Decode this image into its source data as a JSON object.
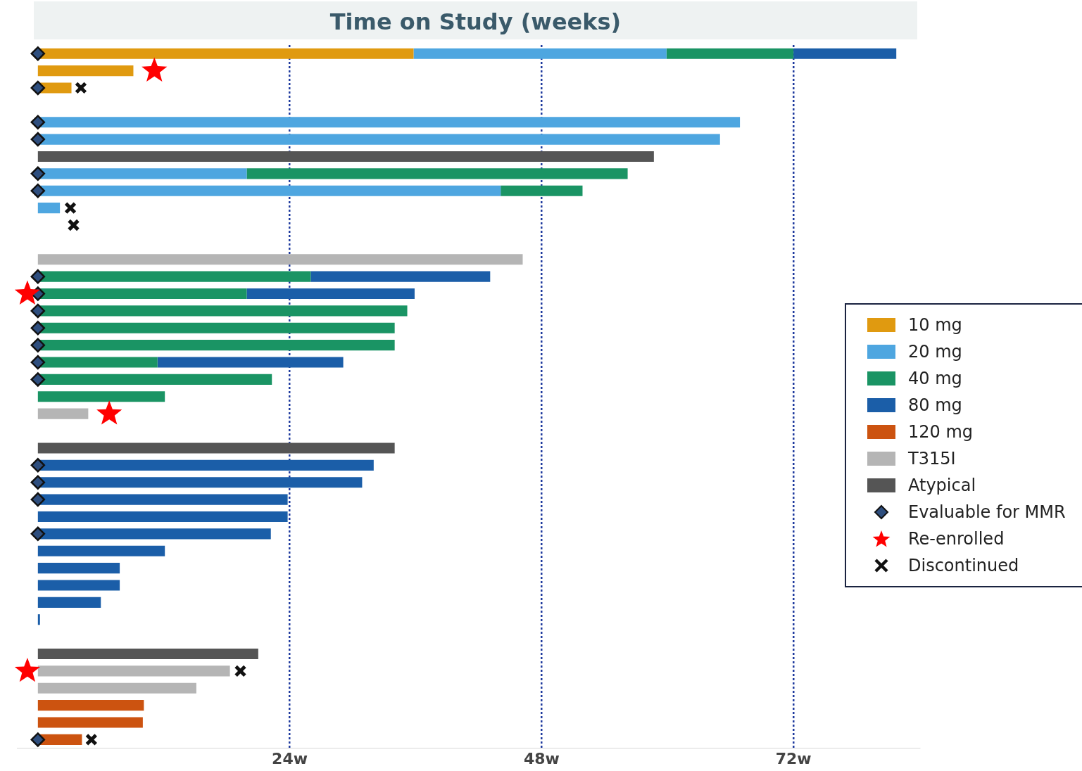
{
  "chart_data": {
    "type": "bar",
    "orientation": "horizontal",
    "stacked": true,
    "title": "Time on Study (weeks)",
    "categories": [
      null,
      null,
      null,
      null,
      null,
      null,
      null,
      null,
      null,
      null,
      null,
      null,
      null,
      null,
      null,
      null,
      null,
      null,
      null,
      null,
      null,
      null,
      null,
      null,
      null,
      null,
      null,
      null,
      null,
      null,
      null,
      null,
      null,
      null,
      null,
      null,
      null,
      null,
      null,
      null,
      null
    ],
    "xlim": [
      -2,
      84
    ],
    "xticks": [
      {
        "value": 24,
        "label": "24w"
      },
      {
        "value": 48,
        "label": "48w"
      },
      {
        "value": 72,
        "label": "72w"
      }
    ],
    "grid": "x",
    "line_style": "dotted",
    "legend": "right",
    "tick_labels": "x",
    "series": [
      {
        "name": "10 mg",
        "color": "#e09a10",
        "values": [
          35.8,
          9.1,
          3.2,
          null,
          null,
          null,
          null,
          null,
          null,
          null,
          null,
          null,
          null,
          null,
          null,
          null,
          null,
          null,
          null,
          null,
          null,
          null,
          null,
          null,
          null,
          null,
          null,
          null,
          null,
          null,
          null,
          null,
          null,
          null,
          null,
          null,
          null,
          null,
          null,
          null,
          null
        ]
      },
      {
        "name": "20 mg",
        "color": "#4ea6e0",
        "values": [
          24.1,
          null,
          null,
          null,
          66.9,
          65,
          null,
          19.9,
          44.1,
          2.1,
          null,
          null,
          null,
          null,
          null,
          null,
          null,
          null,
          null,
          null,
          null,
          null,
          null,
          null,
          null,
          null,
          null,
          null,
          null,
          null,
          null,
          null,
          null,
          null,
          null,
          null,
          null,
          null,
          null,
          null,
          null
        ]
      },
      {
        "name": "40 mg",
        "color": "#1a9464",
        "values": [
          12.1,
          null,
          null,
          null,
          null,
          null,
          null,
          36.3,
          7.8,
          null,
          null,
          null,
          null,
          26,
          19.9,
          35.2,
          34,
          34,
          11.4,
          22.3,
          12.1,
          null,
          null,
          null,
          null,
          null,
          null,
          null,
          null,
          null,
          null,
          null,
          null,
          null,
          null,
          null,
          null,
          null,
          null,
          null,
          null
        ]
      },
      {
        "name": "80 mg",
        "color": "#1b5ea8",
        "values": [
          9.8,
          null,
          null,
          null,
          null,
          null,
          null,
          null,
          null,
          null,
          null,
          null,
          null,
          17.1,
          16,
          null,
          null,
          null,
          17.7,
          null,
          null,
          null,
          null,
          null,
          32,
          30.9,
          23.8,
          23.8,
          22.2,
          12.1,
          7.8,
          7.8,
          6,
          0.2,
          null,
          null,
          null,
          null,
          null,
          null,
          null
        ]
      },
      {
        "name": "120 mg",
        "color": "#cc5310",
        "values": [
          null,
          null,
          null,
          null,
          null,
          null,
          null,
          null,
          null,
          null,
          null,
          null,
          null,
          null,
          null,
          null,
          null,
          null,
          null,
          null,
          null,
          null,
          null,
          null,
          null,
          null,
          null,
          null,
          null,
          null,
          null,
          null,
          null,
          null,
          null,
          null,
          null,
          null,
          10.1,
          10,
          4.2
        ]
      },
      {
        "name": "T315I",
        "color": "#b5b5b5",
        "values": [
          null,
          null,
          null,
          null,
          null,
          null,
          null,
          null,
          null,
          null,
          null,
          null,
          46.2,
          null,
          null,
          null,
          null,
          null,
          null,
          null,
          null,
          4.8,
          null,
          null,
          null,
          null,
          null,
          null,
          null,
          null,
          null,
          null,
          null,
          null,
          null,
          null,
          18.3,
          15.1,
          null,
          null,
          null
        ]
      },
      {
        "name": "Atypical",
        "color": "#555555",
        "values": [
          null,
          null,
          null,
          null,
          null,
          null,
          58.7,
          null,
          null,
          null,
          null,
          null,
          null,
          null,
          null,
          null,
          null,
          null,
          null,
          null,
          null,
          null,
          null,
          34,
          null,
          null,
          null,
          null,
          null,
          null,
          null,
          null,
          null,
          null,
          null,
          21,
          null,
          null,
          null,
          null,
          null
        ]
      },
      {
        "name": "Evaluable for MMR",
        "type": "scatter",
        "marker": "diamond",
        "color": "#2e4e7e",
        "values": [
          0,
          null,
          0,
          null,
          0,
          0,
          null,
          0,
          0,
          null,
          null,
          null,
          null,
          0,
          0,
          0,
          0,
          0,
          0,
          0,
          null,
          null,
          null,
          null,
          0,
          0,
          0,
          null,
          0,
          null,
          null,
          null,
          null,
          null,
          null,
          null,
          null,
          null,
          null,
          null,
          0
        ]
      },
      {
        "name": "Re-enrolled",
        "type": "scatter",
        "marker": "star",
        "color": "#ff0000",
        "values": [
          null,
          11.1,
          null,
          null,
          null,
          null,
          null,
          null,
          null,
          null,
          null,
          null,
          null,
          null,
          -1,
          null,
          null,
          null,
          null,
          null,
          null,
          6.8,
          null,
          null,
          null,
          null,
          null,
          null,
          null,
          null,
          null,
          null,
          null,
          null,
          null,
          null,
          -1,
          null,
          null,
          null,
          null
        ]
      },
      {
        "name": "Discontinued",
        "type": "scatter",
        "marker": "cross",
        "color": "#111111",
        "values": [
          null,
          null,
          4.1,
          null,
          null,
          null,
          null,
          null,
          null,
          3.1,
          3.4,
          null,
          null,
          null,
          null,
          null,
          null,
          null,
          null,
          null,
          null,
          null,
          null,
          null,
          null,
          null,
          null,
          null,
          null,
          null,
          null,
          null,
          null,
          null,
          null,
          null,
          19.3,
          null,
          null,
          null,
          5.1
        ]
      }
    ]
  }
}
